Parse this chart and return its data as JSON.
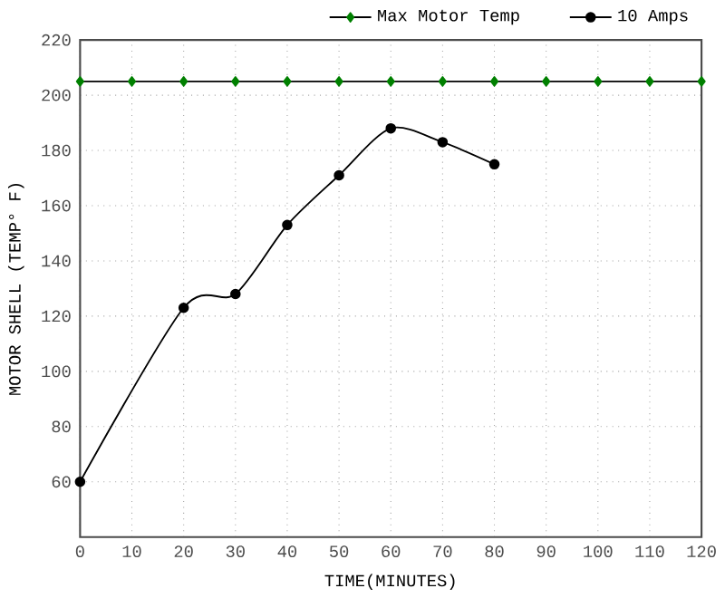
{
  "chart_data": {
    "type": "line",
    "xlabel": "TIME(MINUTES)",
    "ylabel": "MOTOR SHELL (TEMP° F)",
    "xlim": [
      0,
      120
    ],
    "xticks": [
      0,
      10,
      20,
      30,
      40,
      50,
      60,
      70,
      80,
      90,
      100,
      110,
      120
    ],
    "ylim": [
      40,
      220
    ],
    "yticks": [
      60,
      80,
      100,
      120,
      140,
      160,
      180,
      200,
      220
    ],
    "grid": true,
    "legend": "top right",
    "series": [
      {
        "name": "Max Motor Temp",
        "color": "#008000",
        "marker": "diamond",
        "x": [
          0,
          10,
          20,
          30,
          40,
          50,
          60,
          70,
          80,
          90,
          100,
          110,
          120
        ],
        "values": [
          205,
          205,
          205,
          205,
          205,
          205,
          205,
          205,
          205,
          205,
          205,
          205,
          205
        ]
      },
      {
        "name": "10 Amps",
        "color": "#000000",
        "marker": "circle",
        "x": [
          0,
          20,
          30,
          40,
          50,
          60,
          70,
          80
        ],
        "values": [
          60,
          123,
          128,
          153,
          171,
          188,
          183,
          175
        ]
      }
    ]
  }
}
